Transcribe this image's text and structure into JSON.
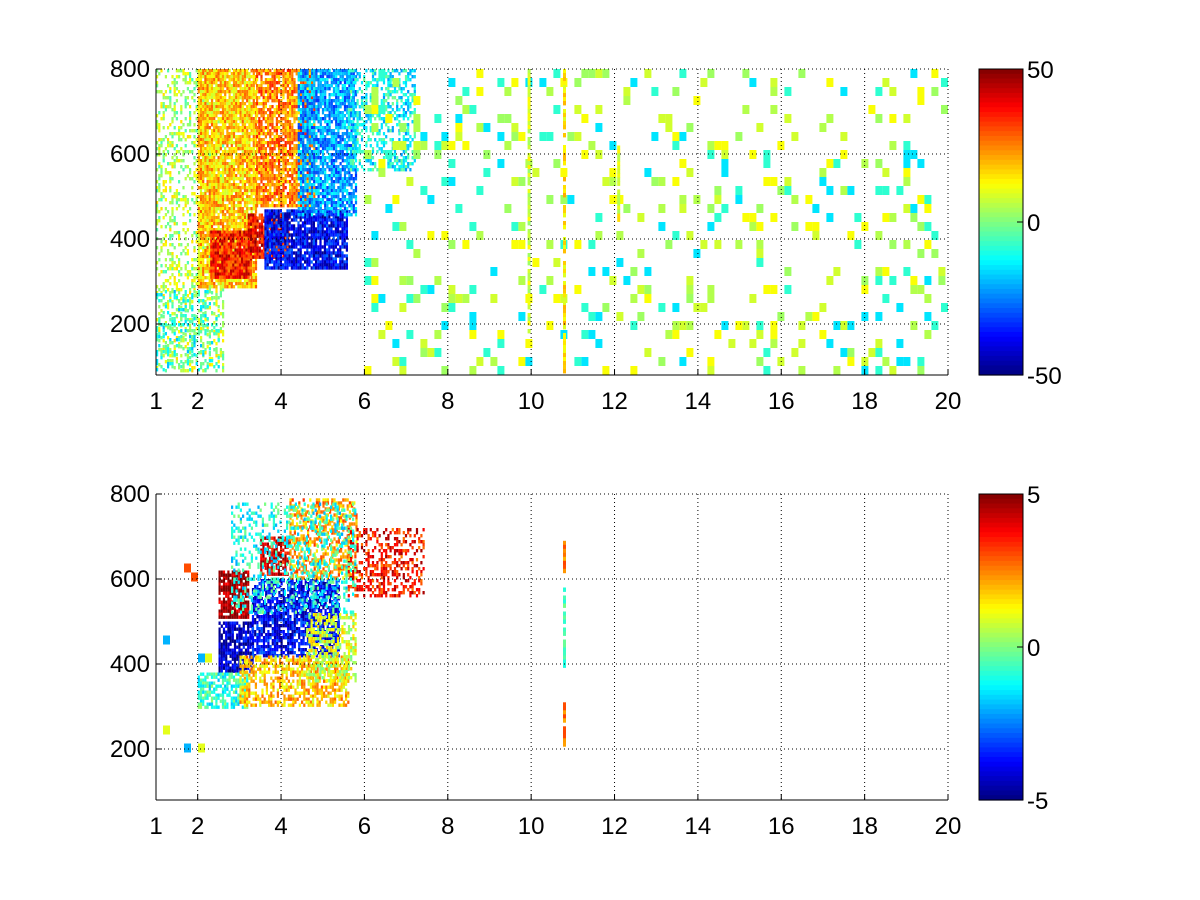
{
  "chart_data": [
    {
      "type": "heatmap",
      "title": "",
      "xlabel": "",
      "ylabel": "",
      "xlim": [
        1,
        20
      ],
      "ylim": [
        80,
        800
      ],
      "x_ticks": [
        "1",
        "2",
        "4",
        "6",
        "8",
        "10",
        "12",
        "14",
        "16",
        "18",
        "20"
      ],
      "y_ticks": [
        "200",
        "400",
        "600",
        "800"
      ],
      "grid": true,
      "colormap": "jet",
      "clim": [
        -50,
        50
      ],
      "colorbar_ticks": [
        "50",
        "0",
        "-50"
      ],
      "background": "#ffffff",
      "blobs": [
        {
          "x": [
            1.0,
            2.6
          ],
          "y": [
            90,
            800
          ],
          "value": 5,
          "density": 0.35
        },
        {
          "x": [
            2.0,
            3.4
          ],
          "y": [
            290,
            800
          ],
          "value": 18,
          "density": 0.9
        },
        {
          "x": [
            2.3,
            3.3
          ],
          "y": [
            310,
            420
          ],
          "value": 35,
          "density": 0.95
        },
        {
          "x": [
            3.2,
            4.2
          ],
          "y": [
            360,
            460
          ],
          "value": 38,
          "density": 0.9
        },
        {
          "x": [
            3.4,
            4.8
          ],
          "y": [
            480,
            800
          ],
          "value": 24,
          "density": 0.8
        },
        {
          "x": [
            3.6,
            5.6
          ],
          "y": [
            330,
            470
          ],
          "value": -38,
          "density": 0.85
        },
        {
          "x": [
            4.4,
            5.8
          ],
          "y": [
            460,
            800
          ],
          "value": -22,
          "density": 0.8
        },
        {
          "x": [
            5.6,
            7.2
          ],
          "y": [
            560,
            800
          ],
          "value": -12,
          "density": 0.5
        },
        {
          "x": [
            1.0,
            2.5
          ],
          "y": [
            90,
            280
          ],
          "value": -8,
          "density": 0.3
        }
      ],
      "sparse_field": {
        "x": [
          6.0,
          20.0
        ],
        "y": [
          90,
          800
        ],
        "values": [
          -15,
          -8,
          3,
          5,
          8,
          12
        ],
        "density": 0.17
      },
      "vertical_lines": [
        {
          "x": 9.95,
          "y": [
            180,
            800
          ],
          "value": 8
        },
        {
          "x": 10.8,
          "y": [
            90,
            800
          ],
          "value": 15
        },
        {
          "x": 12.1,
          "y": [
            450,
            620
          ],
          "value": 10
        }
      ]
    },
    {
      "type": "heatmap",
      "title": "",
      "xlabel": "",
      "ylabel": "",
      "xlim": [
        1,
        20
      ],
      "ylim": [
        80,
        800
      ],
      "x_ticks": [
        "1",
        "2",
        "4",
        "6",
        "8",
        "10",
        "12",
        "14",
        "16",
        "18",
        "20"
      ],
      "y_ticks": [
        "200",
        "400",
        "600",
        "800"
      ],
      "grid": true,
      "colormap": "jet",
      "clim": [
        -5,
        5
      ],
      "colorbar_ticks": [
        "5",
        "0",
        "-5"
      ],
      "background": "#ffffff",
      "blobs": [
        {
          "x": [
            2.5,
            3.2
          ],
          "y": [
            510,
            620
          ],
          "value": 4.8,
          "density": 0.85
        },
        {
          "x": [
            3.5,
            4.2
          ],
          "y": [
            610,
            700
          ],
          "value": 4.2,
          "density": 0.7
        },
        {
          "x": [
            2.5,
            3.3
          ],
          "y": [
            380,
            500
          ],
          "value": -4.3,
          "density": 0.8
        },
        {
          "x": [
            3.3,
            5.4
          ],
          "y": [
            420,
            600
          ],
          "value": -3.8,
          "density": 0.75
        },
        {
          "x": [
            2.0,
            3.2
          ],
          "y": [
            300,
            380
          ],
          "value": -0.8,
          "density": 0.7
        },
        {
          "x": [
            3.0,
            5.6
          ],
          "y": [
            300,
            420
          ],
          "value": 1.8,
          "density": 0.6
        },
        {
          "x": [
            4.2,
            5.8
          ],
          "y": [
            600,
            790
          ],
          "value": 2.2,
          "density": 0.55
        },
        {
          "x": [
            5.6,
            7.4
          ],
          "y": [
            560,
            720
          ],
          "value": 3.6,
          "density": 0.45
        },
        {
          "x": [
            4.6,
            5.8
          ],
          "y": [
            360,
            520
          ],
          "value": 0.8,
          "density": 0.5
        },
        {
          "x": [
            2.8,
            5.8
          ],
          "y": [
            520,
            780
          ],
          "value": -1.0,
          "density": 0.3
        }
      ],
      "sparse_field": {
        "x": [
          1.0,
          2.2
        ],
        "y": [
          90,
          700
        ],
        "values": [
          -2,
          1,
          3
        ],
        "density": 0.05
      },
      "vertical_lines": [
        {
          "x": 10.8,
          "y": [
            215,
            310
          ],
          "value": 2.5
        },
        {
          "x": 10.8,
          "y": [
            400,
            580
          ],
          "value": -0.5
        },
        {
          "x": 10.8,
          "y": [
            620,
            690
          ],
          "value": 2.5
        }
      ]
    }
  ]
}
